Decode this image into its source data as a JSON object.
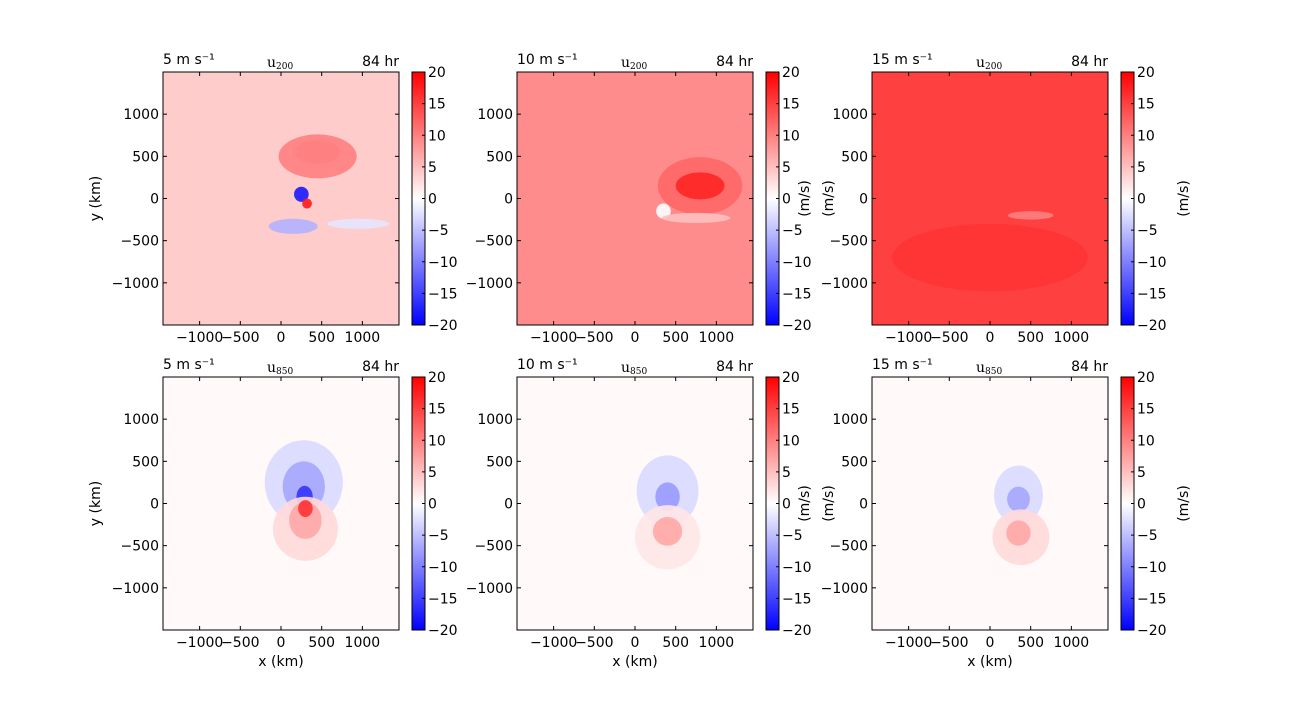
{
  "figure": {
    "colormap": {
      "low": "#0000ff",
      "mid": "#ffffff",
      "high": "#ff0000"
    }
  },
  "chart_data": [
    {
      "type": "heatmap",
      "left_title": "5 m s⁻¹",
      "center_title": "u",
      "center_sub": "200",
      "right_title": "84 hr",
      "xlabel": "",
      "ylabel": "y (km)",
      "xlim": [
        -1450,
        1450
      ],
      "ylim": [
        -1500,
        1500
      ],
      "xticks": [
        -1000,
        -500,
        0,
        500,
        1000
      ],
      "xtick_labels": [
        "−1000",
        "−500",
        "0",
        "500",
        "1000"
      ],
      "yticks": [
        -1000,
        -500,
        0,
        500,
        1000
      ],
      "ytick_labels": [
        "−1000",
        "−500",
        "0",
        "500",
        "1000"
      ],
      "colorbar": {
        "label": "",
        "range": [
          -20,
          20
        ],
        "ticks": [
          -20,
          -15,
          -10,
          -5,
          0,
          5,
          10,
          15,
          20
        ],
        "tick_labels": [
          "−20",
          "−15",
          "−10",
          "−5",
          "0",
          "5",
          "10",
          "15",
          "20"
        ]
      },
      "background_value": 4,
      "features": [
        {
          "x": 450,
          "y": 500,
          "rx": 480,
          "ry": 260,
          "value": 10
        },
        {
          "x": 450,
          "y": 550,
          "rx": 280,
          "ry": 140,
          "value": 10
        },
        {
          "x": 250,
          "y": 50,
          "rx": 90,
          "ry": 90,
          "value": -18
        },
        {
          "x": 320,
          "y": -60,
          "rx": 60,
          "ry": 60,
          "value": 18
        },
        {
          "x": 150,
          "y": -330,
          "rx": 300,
          "ry": 90,
          "value": -6
        },
        {
          "x": 950,
          "y": -300,
          "rx": 380,
          "ry": 60,
          "value": -2
        }
      ]
    },
    {
      "type": "heatmap",
      "left_title": "10 m s⁻¹",
      "center_title": "u",
      "center_sub": "200",
      "right_title": "84 hr",
      "xlabel": "",
      "ylabel": "",
      "xlim": [
        -1450,
        1450
      ],
      "ylim": [
        -1500,
        1500
      ],
      "xticks": [
        -1000,
        -500,
        0,
        500,
        1000
      ],
      "xtick_labels": [
        "−1000",
        "−500",
        "0",
        "500",
        "1000"
      ],
      "yticks": [
        -1000,
        -500,
        0,
        500,
        1000
      ],
      "ytick_labels": [
        "−1000",
        "−500",
        "0",
        "500",
        "1000"
      ],
      "colorbar": {
        "label": "(m/s)",
        "range": [
          -20,
          20
        ],
        "ticks": [
          -20,
          -15,
          -10,
          -5,
          0,
          5,
          10,
          15,
          20
        ],
        "tick_labels": [
          "−20",
          "−15",
          "−10",
          "−5",
          "0",
          "5",
          "10",
          "15",
          "20"
        ]
      },
      "background_value": 9,
      "features": [
        {
          "x": 800,
          "y": 150,
          "rx": 520,
          "ry": 340,
          "value": 12
        },
        {
          "x": 800,
          "y": 150,
          "rx": 300,
          "ry": 160,
          "value": 17
        },
        {
          "x": 350,
          "y": -150,
          "rx": 90,
          "ry": 90,
          "value": 0
        },
        {
          "x": 750,
          "y": -230,
          "rx": 420,
          "ry": 60,
          "value": 5
        }
      ]
    },
    {
      "type": "heatmap",
      "left_title": "15 m s⁻¹",
      "center_title": "u",
      "center_sub": "200",
      "right_title": "84 hr",
      "xlabel": "",
      "ylabel": "(m/s)",
      "xlim": [
        -1450,
        1450
      ],
      "ylim": [
        -1500,
        1500
      ],
      "xticks": [
        -1000,
        -500,
        0,
        500,
        1000
      ],
      "xtick_labels": [
        "−1000",
        "−500",
        "0",
        "500",
        "1000"
      ],
      "yticks": [
        -1000,
        -500,
        0,
        500,
        1000
      ],
      "ytick_labels": [
        "−1000",
        "−500",
        "0",
        "500",
        "1000"
      ],
      "colorbar": {
        "label": "(m/s)",
        "range": [
          -20,
          20
        ],
        "ticks": [
          -20,
          -15,
          -10,
          -5,
          0,
          5,
          10,
          15,
          20
        ],
        "tick_labels": [
          "−20",
          "−15",
          "−10",
          "−5",
          "0",
          "5",
          "10",
          "15",
          "20"
        ]
      },
      "background_value": 15,
      "features": [
        {
          "x": 0,
          "y": -700,
          "rx": 1200,
          "ry": 400,
          "value": 16
        },
        {
          "x": 500,
          "y": -200,
          "rx": 280,
          "ry": 50,
          "value": 10
        }
      ]
    },
    {
      "type": "heatmap",
      "left_title": "5 m s⁻¹",
      "center_title": "u",
      "center_sub": "850",
      "right_title": "84 hr",
      "xlabel": "x (km)",
      "ylabel": "y (km)",
      "xlim": [
        -1450,
        1450
      ],
      "ylim": [
        -1500,
        1500
      ],
      "xticks": [
        -1000,
        -500,
        0,
        500,
        1000
      ],
      "xtick_labels": [
        "−1000",
        "−500",
        "0",
        "500",
        "1000"
      ],
      "yticks": [
        -1000,
        -500,
        0,
        500,
        1000
      ],
      "ytick_labels": [
        "−1000",
        "−500",
        "0",
        "500",
        "1000"
      ],
      "colorbar": {
        "label": "",
        "range": [
          -20,
          20
        ],
        "ticks": [
          -20,
          -15,
          -10,
          -5,
          0,
          5,
          10,
          15,
          20
        ],
        "tick_labels": [
          "−20",
          "−15",
          "−10",
          "−5",
          "0",
          "5",
          "10",
          "15",
          "20"
        ]
      },
      "background_value": 0.5,
      "features": [
        {
          "x": 280,
          "y": 250,
          "rx": 480,
          "ry": 500,
          "value": -3
        },
        {
          "x": 280,
          "y": 200,
          "rx": 260,
          "ry": 300,
          "value": -7
        },
        {
          "x": 290,
          "y": 80,
          "rx": 100,
          "ry": 130,
          "value": -16
        },
        {
          "x": 300,
          "y": -300,
          "rx": 400,
          "ry": 380,
          "value": 3
        },
        {
          "x": 300,
          "y": -200,
          "rx": 200,
          "ry": 220,
          "value": 7
        },
        {
          "x": 300,
          "y": -60,
          "rx": 90,
          "ry": 100,
          "value": 16
        }
      ]
    },
    {
      "type": "heatmap",
      "left_title": "10 m s⁻¹",
      "center_title": "u",
      "center_sub": "850",
      "right_title": "84 hr",
      "xlabel": "x (km)",
      "ylabel": "",
      "xlim": [
        -1450,
        1450
      ],
      "ylim": [
        -1500,
        1500
      ],
      "xticks": [
        -1000,
        -500,
        0,
        500,
        1000
      ],
      "xtick_labels": [
        "−1000",
        "−500",
        "0",
        "500",
        "1000"
      ],
      "yticks": [
        -1000,
        -500,
        0,
        500,
        1000
      ],
      "ytick_labels": [
        "−1000",
        "−500",
        "0",
        "500",
        "1000"
      ],
      "colorbar": {
        "label": "(m/s)",
        "range": [
          -20,
          20
        ],
        "ticks": [
          -20,
          -15,
          -10,
          -5,
          0,
          5,
          10,
          15,
          20
        ],
        "tick_labels": [
          "−20",
          "−15",
          "−10",
          "−5",
          "0",
          "5",
          "10",
          "15",
          "20"
        ]
      },
      "background_value": 0.5,
      "features": [
        {
          "x": 400,
          "y": 150,
          "rx": 380,
          "ry": 420,
          "value": -3
        },
        {
          "x": 400,
          "y": 80,
          "rx": 150,
          "ry": 170,
          "value": -8
        },
        {
          "x": 400,
          "y": -400,
          "rx": 400,
          "ry": 380,
          "value": 2
        },
        {
          "x": 400,
          "y": -330,
          "rx": 180,
          "ry": 170,
          "value": 7
        }
      ]
    },
    {
      "type": "heatmap",
      "left_title": "15 m s⁻¹",
      "center_title": "u",
      "center_sub": "850",
      "right_title": "84 hr",
      "xlabel": "x (km)",
      "ylabel": "(m/s)",
      "xlim": [
        -1450,
        1450
      ],
      "ylim": [
        -1500,
        1500
      ],
      "xticks": [
        -1000,
        -500,
        0,
        500,
        1000
      ],
      "xtick_labels": [
        "−1000",
        "−500",
        "0",
        "500",
        "1000"
      ],
      "yticks": [
        -1000,
        -500,
        0,
        500,
        1000
      ],
      "ytick_labels": [
        "−1000",
        "−500",
        "0",
        "500",
        "1000"
      ],
      "colorbar": {
        "label": "(m/s)",
        "range": [
          -20,
          20
        ],
        "ticks": [
          -20,
          -15,
          -10,
          -5,
          0,
          5,
          10,
          15,
          20
        ],
        "tick_labels": [
          "−20",
          "−15",
          "−10",
          "−5",
          "0",
          "5",
          "10",
          "15",
          "20"
        ]
      },
      "background_value": 0.5,
      "features": [
        {
          "x": 350,
          "y": 100,
          "rx": 300,
          "ry": 350,
          "value": -3
        },
        {
          "x": 350,
          "y": 50,
          "rx": 140,
          "ry": 150,
          "value": -7
        },
        {
          "x": 380,
          "y": -400,
          "rx": 350,
          "ry": 330,
          "value": 3
        },
        {
          "x": 350,
          "y": -350,
          "rx": 150,
          "ry": 150,
          "value": 7
        }
      ]
    }
  ]
}
